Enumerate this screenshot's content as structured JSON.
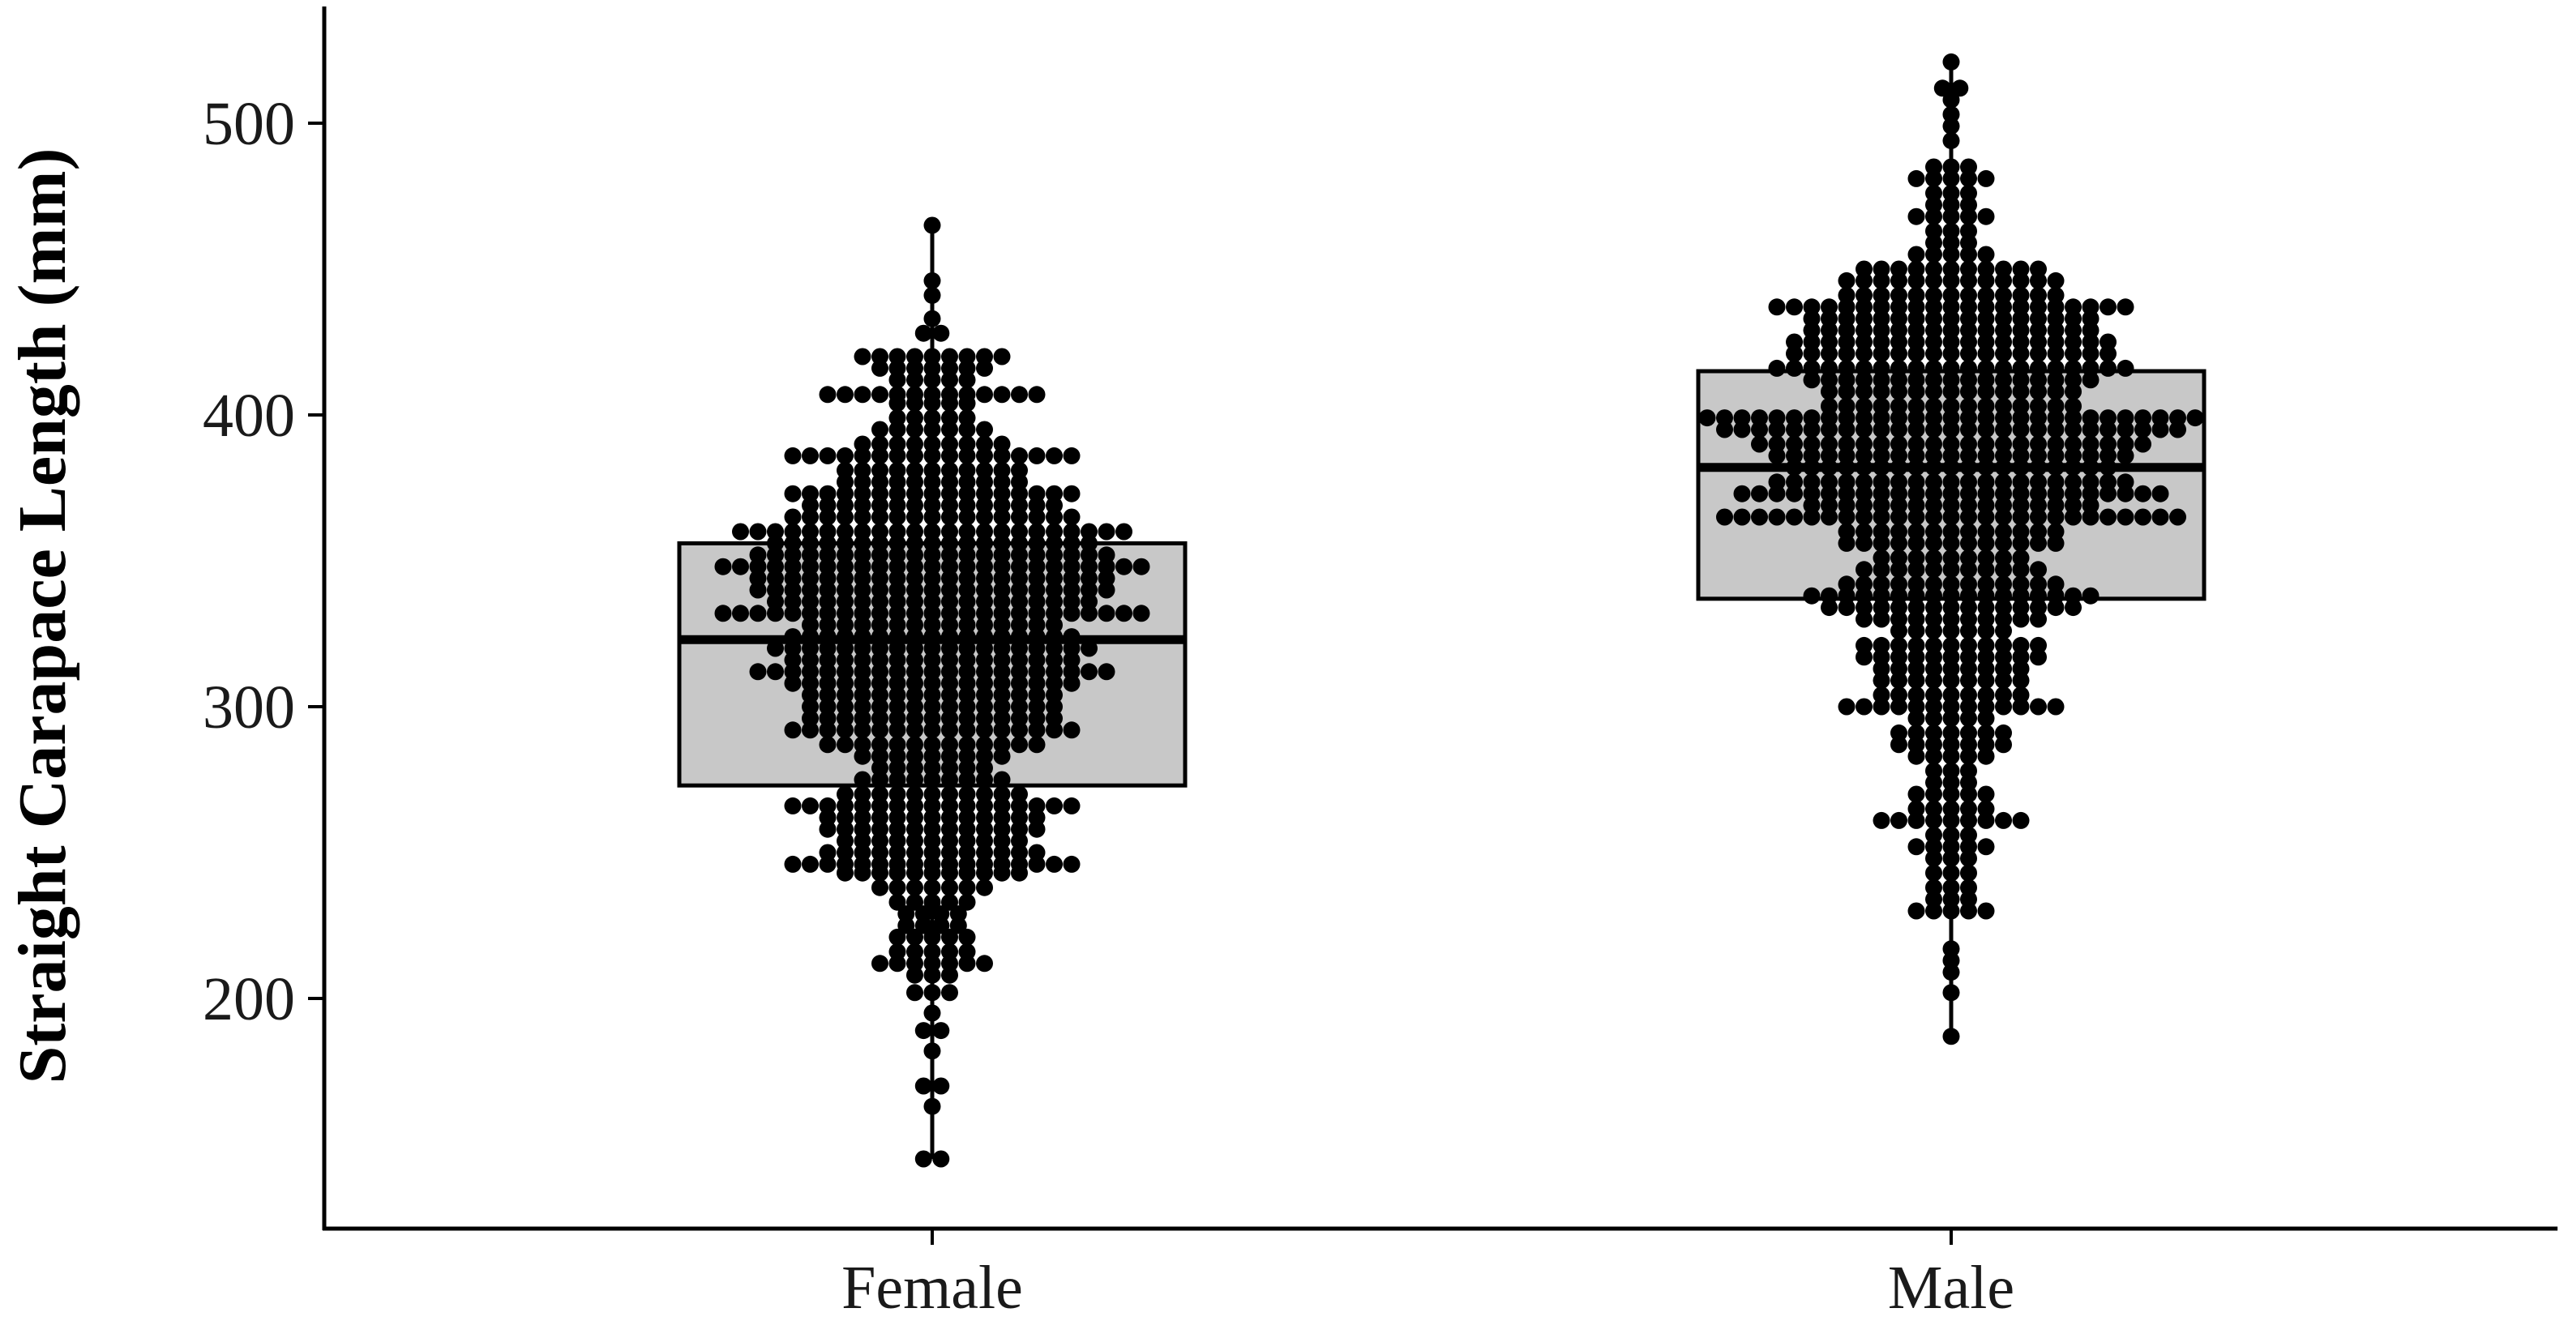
{
  "chart_data": {
    "type": "boxplot-dotplot",
    "title": "",
    "xlabel": "",
    "ylabel": "Straight Carapace Length (mm)",
    "categories": [
      "Female",
      "Male"
    ],
    "ylim": [
      140,
      540
    ],
    "yticks": [
      200,
      300,
      400,
      500
    ],
    "grid": false,
    "legend": "none",
    "box_fill": "#c8c8c8",
    "dot_color": "#000000",
    "boxes": [
      {
        "category": "Female",
        "q1": 273,
        "median": 323,
        "q3": 356,
        "whisker_low": 145,
        "whisker_high": 465
      },
      {
        "category": "Male",
        "q1": 337,
        "median": 382,
        "q3": 415,
        "whisker_low": 187,
        "whisker_high": 521
      }
    ],
    "dot_bin_width_mm": 3.2,
    "dot_columns": [
      {
        "category": "Female",
        "bins": [
          {
            "y": 145,
            "n": 2
          },
          {
            "y": 163,
            "n": 1
          },
          {
            "y": 170,
            "n": 2
          },
          {
            "y": 182,
            "n": 1
          },
          {
            "y": 189,
            "n": 2
          },
          {
            "y": 195,
            "n": 1
          },
          {
            "y": 202,
            "n": 3
          },
          {
            "y": 208,
            "n": 3
          },
          {
            "y": 212,
            "n": 7
          },
          {
            "y": 216,
            "n": 5
          },
          {
            "y": 221,
            "n": 5
          },
          {
            "y": 225,
            "n": 4
          },
          {
            "y": 229,
            "n": 4
          },
          {
            "y": 233,
            "n": 5
          },
          {
            "y": 238,
            "n": 7
          },
          {
            "y": 243,
            "n": 11
          },
          {
            "y": 246,
            "n": 17
          },
          {
            "y": 250,
            "n": 13
          },
          {
            "y": 254,
            "n": 11
          },
          {
            "y": 258,
            "n": 13
          },
          {
            "y": 262,
            "n": 13
          },
          {
            "y": 266,
            "n": 17
          },
          {
            "y": 270,
            "n": 11
          },
          {
            "y": 275,
            "n": 9
          },
          {
            "y": 279,
            "n": 7
          },
          {
            "y": 283,
            "n": 9
          },
          {
            "y": 287,
            "n": 13
          },
          {
            "y": 292,
            "n": 17
          },
          {
            "y": 296,
            "n": 15
          },
          {
            "y": 300,
            "n": 15
          },
          {
            "y": 304,
            "n": 15
          },
          {
            "y": 308,
            "n": 17
          },
          {
            "y": 312,
            "n": 21
          },
          {
            "y": 316,
            "n": 17
          },
          {
            "y": 320,
            "n": 19
          },
          {
            "y": 324,
            "n": 17
          },
          {
            "y": 328,
            "n": 15
          },
          {
            "y": 332,
            "n": 25
          },
          {
            "y": 336,
            "n": 19
          },
          {
            "y": 340,
            "n": 21
          },
          {
            "y": 344,
            "n": 21
          },
          {
            "y": 348,
            "n": 25
          },
          {
            "y": 352,
            "n": 21
          },
          {
            "y": 356,
            "n": 19
          },
          {
            "y": 360,
            "n": 23
          },
          {
            "y": 365,
            "n": 17
          },
          {
            "y": 369,
            "n": 15
          },
          {
            "y": 373,
            "n": 17
          },
          {
            "y": 377,
            "n": 11
          },
          {
            "y": 381,
            "n": 11
          },
          {
            "y": 386,
            "n": 17
          },
          {
            "y": 390,
            "n": 9
          },
          {
            "y": 395,
            "n": 7
          },
          {
            "y": 399,
            "n": 5
          },
          {
            "y": 404,
            "n": 5
          },
          {
            "y": 407,
            "n": 13
          },
          {
            "y": 412,
            "n": 5
          },
          {
            "y": 416,
            "n": 7
          },
          {
            "y": 420,
            "n": 9
          },
          {
            "y": 428,
            "n": 2
          },
          {
            "y": 433,
            "n": 1
          },
          {
            "y": 441,
            "n": 1
          },
          {
            "y": 446,
            "n": 1
          },
          {
            "y": 465,
            "n": 1
          }
        ]
      },
      {
        "category": "Male",
        "bins": [
          {
            "y": 187,
            "n": 1
          },
          {
            "y": 202,
            "n": 1
          },
          {
            "y": 209,
            "n": 1
          },
          {
            "y": 213,
            "n": 1
          },
          {
            "y": 217,
            "n": 1
          },
          {
            "y": 230,
            "n": 5
          },
          {
            "y": 234,
            "n": 3
          },
          {
            "y": 238,
            "n": 3
          },
          {
            "y": 243,
            "n": 3
          },
          {
            "y": 248,
            "n": 3
          },
          {
            "y": 252,
            "n": 5
          },
          {
            "y": 256,
            "n": 3
          },
          {
            "y": 261,
            "n": 9
          },
          {
            "y": 265,
            "n": 5
          },
          {
            "y": 270,
            "n": 5
          },
          {
            "y": 274,
            "n": 3
          },
          {
            "y": 278,
            "n": 3
          },
          {
            "y": 283,
            "n": 5
          },
          {
            "y": 287,
            "n": 7
          },
          {
            "y": 291,
            "n": 7
          },
          {
            "y": 296,
            "n": 5
          },
          {
            "y": 300,
            "n": 13
          },
          {
            "y": 304,
            "n": 9
          },
          {
            "y": 309,
            "n": 9
          },
          {
            "y": 313,
            "n": 9
          },
          {
            "y": 317,
            "n": 11
          },
          {
            "y": 321,
            "n": 11
          },
          {
            "y": 326,
            "n": 7
          },
          {
            "y": 330,
            "n": 11
          },
          {
            "y": 334,
            "n": 15
          },
          {
            "y": 338,
            "n": 17
          },
          {
            "y": 342,
            "n": 13
          },
          {
            "y": 347,
            "n": 11
          },
          {
            "y": 351,
            "n": 9
          },
          {
            "y": 356,
            "n": 13
          },
          {
            "y": 360,
            "n": 13
          },
          {
            "y": 365,
            "n": 27
          },
          {
            "y": 369,
            "n": 17
          },
          {
            "y": 373,
            "n": 25
          },
          {
            "y": 377,
            "n": 21
          },
          {
            "y": 382,
            "n": 19
          },
          {
            "y": 386,
            "n": 21
          },
          {
            "y": 390,
            "n": 23
          },
          {
            "y": 395,
            "n": 27
          },
          {
            "y": 399,
            "n": 29
          },
          {
            "y": 403,
            "n": 15
          },
          {
            "y": 408,
            "n": 15
          },
          {
            "y": 412,
            "n": 17
          },
          {
            "y": 416,
            "n": 21
          },
          {
            "y": 421,
            "n": 19
          },
          {
            "y": 425,
            "n": 19
          },
          {
            "y": 429,
            "n": 17
          },
          {
            "y": 433,
            "n": 17
          },
          {
            "y": 437,
            "n": 21
          },
          {
            "y": 441,
            "n": 13
          },
          {
            "y": 446,
            "n": 13
          },
          {
            "y": 450,
            "n": 11
          },
          {
            "y": 455,
            "n": 5
          },
          {
            "y": 459,
            "n": 3
          },
          {
            "y": 463,
            "n": 3
          },
          {
            "y": 468,
            "n": 5
          },
          {
            "y": 472,
            "n": 3
          },
          {
            "y": 476,
            "n": 3
          },
          {
            "y": 481,
            "n": 5
          },
          {
            "y": 485,
            "n": 3
          },
          {
            "y": 494,
            "n": 1
          },
          {
            "y": 499,
            "n": 1
          },
          {
            "y": 503,
            "n": 1
          },
          {
            "y": 508,
            "n": 1
          },
          {
            "y": 512,
            "n": 2
          },
          {
            "y": 521,
            "n": 1
          }
        ]
      }
    ]
  }
}
